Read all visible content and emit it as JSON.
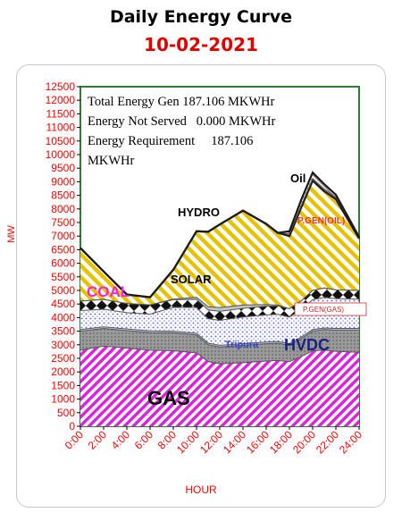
{
  "chart_data": {
    "type": "area",
    "title": "Daily Energy Curve",
    "subtitle": "10-02-2021",
    "xlabel": "HOUR",
    "ylabel": "MW",
    "x_ticks": [
      "0:00",
      "2:00",
      "4:00",
      "6:00",
      "8:00",
      "10:00",
      "12:00",
      "14:00",
      "16:00",
      "18:00",
      "20:00",
      "22:00",
      "24:00"
    ],
    "y_ticks": [
      "0",
      "500",
      "1000",
      "1500",
      "2000",
      "2500",
      "3000",
      "3500",
      "4000",
      "4500",
      "5000",
      "5500",
      "6000",
      "6500",
      "7000",
      "7500",
      "8000",
      "8500",
      "9000",
      "9500",
      "10000",
      "10500",
      "11000",
      "11500",
      "12000",
      "12500"
    ],
    "ylim": [
      0,
      12500
    ],
    "x": [
      0,
      2,
      4,
      6,
      8,
      10,
      11,
      12,
      14,
      16,
      17,
      18,
      19,
      20,
      21,
      22,
      24
    ],
    "series": [
      {
        "name": "GAS",
        "color": "#dd22dd",
        "values": [
          2800,
          2950,
          2880,
          2800,
          2780,
          2700,
          2380,
          2300,
          2340,
          2400,
          2420,
          2380,
          2560,
          2780,
          2800,
          2760,
          2720
        ]
      },
      {
        "name": "HVDC",
        "color": "#8a8a8a",
        "values": [
          700,
          650,
          640,
          650,
          660,
          660,
          620,
          620,
          640,
          640,
          640,
          600,
          660,
          720,
          760,
          780,
          820
        ]
      },
      {
        "name": "Tripura",
        "color": "#9fb0d6",
        "values": [
          60,
          60,
          60,
          60,
          60,
          60,
          60,
          60,
          60,
          60,
          60,
          60,
          60,
          60,
          60,
          60,
          60
        ]
      },
      {
        "name": "P.GEN(GAS)",
        "color": "#6e6edc",
        "values": [
          700,
          650,
          600,
          620,
          880,
          950,
          900,
          920,
          980,
          1000,
          1000,
          980,
          1000,
          1100,
          1120,
          1100,
          1080
        ]
      },
      {
        "name": "COAL",
        "color": "#1a1a1a",
        "values": [
          350,
          360,
          340,
          340,
          280,
          300,
          320,
          330,
          320,
          320,
          310,
          310,
          330,
          340,
          350,
          320,
          320
        ]
      },
      {
        "name": "SOLAR",
        "color": "#9aa0a8",
        "values": [
          0,
          0,
          0,
          0,
          20,
          80,
          120,
          140,
          120,
          60,
          30,
          0,
          0,
          0,
          0,
          0,
          0
        ]
      },
      {
        "name": "HYDRO",
        "color": "#e6c200",
        "values": [
          1950,
          1030,
          330,
          280,
          1080,
          2430,
          2760,
          3060,
          3480,
          2970,
          2660,
          2670,
          3430,
          4040,
          3560,
          3340,
          1910
        ]
      },
      {
        "name": "P.GEN(OIL)",
        "color": "#e05050",
        "values": [
          0,
          0,
          0,
          0,
          0,
          0,
          0,
          0,
          0,
          0,
          0,
          80,
          80,
          80,
          80,
          80,
          60
        ]
      },
      {
        "name": "Oil",
        "color": "#c8c8c8",
        "values": [
          0,
          0,
          0,
          0,
          0,
          0,
          0,
          0,
          0,
          0,
          0,
          100,
          200,
          220,
          180,
          80,
          0
        ]
      }
    ],
    "series_labels": [
      "GAS",
      "HVDC",
      "Tripura",
      "P.GEN(GAS)",
      "COAL",
      "SOLAR",
      "HYDRO",
      "P.GEN(OIL)",
      "Oil"
    ],
    "annotation_lines": [
      "Total Energy Gen 187.106 MKWHr",
      "Energy Not Served   0.000 MKWHr",
      "Energy Requirement     187.106",
      "MKWHr"
    ]
  }
}
